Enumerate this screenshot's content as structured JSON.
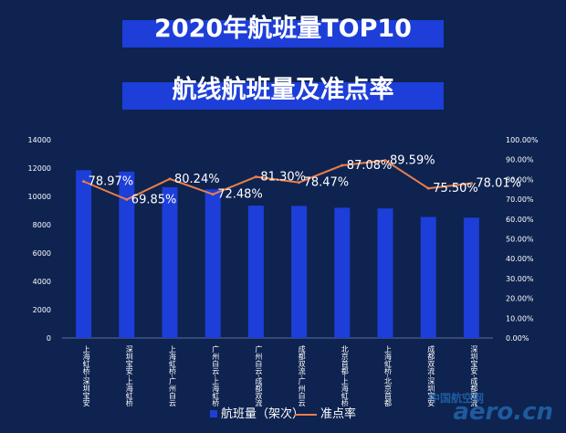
{
  "header": {
    "title": "2020年航班量TOP10",
    "subtitle": "航线航班量及准点率"
  },
  "colors": {
    "bar": "#1d3ed8",
    "line": "#e87e4b",
    "background": "#0e2350"
  },
  "chart_data": {
    "type": "bar",
    "categories": [
      "上海虹桥-深圳宝安",
      "深圳宝安-上海虹桥",
      "上海虹桥-广州白云",
      "广州白云-上海虹桥",
      "广州白云-成都双流",
      "成都双流-广州白云",
      "北京首都-上海虹桥",
      "上海虹桥-北京首都",
      "成都双流-深圳宝安",
      "深圳宝安-成都双流"
    ],
    "series": [
      {
        "name": "航班量（架次）",
        "type": "bar",
        "axis": "left",
        "values": [
          11850,
          11750,
          10650,
          10500,
          9350,
          9330,
          9200,
          9150,
          8550,
          8500
        ]
      },
      {
        "name": "准点率",
        "type": "line",
        "axis": "right",
        "values": [
          0.7897,
          0.6985,
          0.8024,
          0.7248,
          0.813,
          0.7847,
          0.8708,
          0.8959,
          0.755,
          0.7801
        ],
        "labels": [
          "78.97%",
          "69.85%",
          "80.24%",
          "72.48%",
          "81.30%",
          "78.47%",
          "87.08%",
          "89.59%",
          "75.50%",
          "78.01%"
        ]
      }
    ],
    "y_left": {
      "min": 0,
      "max": 14000,
      "ticks": [
        "0",
        "2000",
        "4000",
        "6000",
        "8000",
        "10000",
        "12000",
        "14000"
      ]
    },
    "y_right": {
      "min": 0,
      "max": 1,
      "ticks": [
        "0.00%",
        "10.00%",
        "20.00%",
        "30.00%",
        "40.00%",
        "50.00%",
        "60.00%",
        "70.00%",
        "80.00%",
        "90.00%",
        "100.00%"
      ]
    },
    "grid": false,
    "legend_position": "bottom"
  },
  "watermark": {
    "line1": "中国航空网",
    "line2": "aero.cn"
  }
}
